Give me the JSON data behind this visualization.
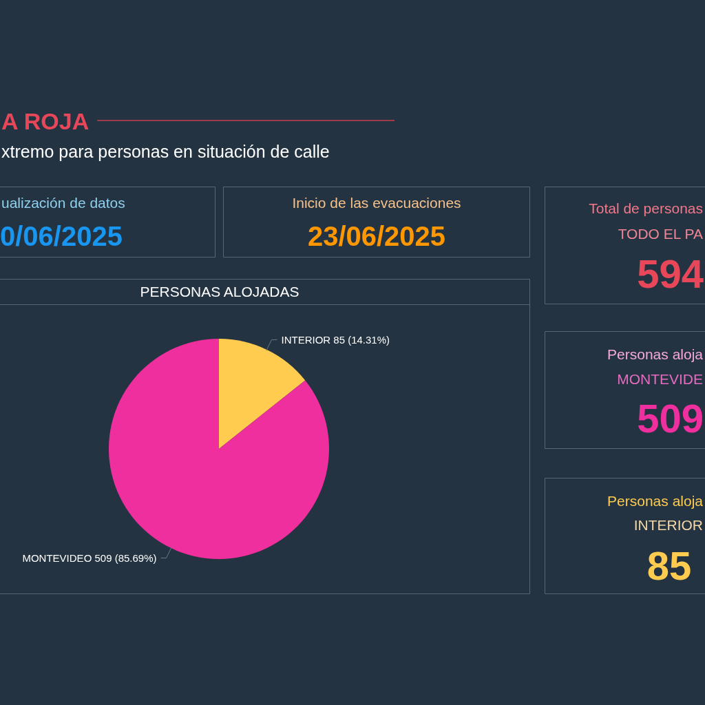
{
  "chart_data": [
    {
      "type": "other",
      "title": "A ROJA",
      "subtitle": "xtremo para personas en situación de calle"
    },
    {
      "type": "other",
      "title": "ualización de datos",
      "annotations": [
        "0/06/2025"
      ]
    },
    {
      "type": "other",
      "title": "Inicio de las evacuaciones",
      "annotations": [
        "23/06/2025"
      ]
    },
    {
      "type": "other",
      "title": "Total de personas",
      "subtitle": "TODO EL PA",
      "annotations": [
        "594"
      ]
    },
    {
      "type": "pie",
      "title": "PERSONAS ALOJADAS",
      "categories": [
        "INTERIOR",
        "MONTEVIDEO"
      ],
      "values": [
        85,
        509
      ],
      "colors": [
        "#ffcc4f",
        "#ee2f9d"
      ],
      "value_labels": [
        "85 (14.31%)",
        "509 (85.69%)"
      ]
    },
    {
      "type": "other",
      "title": "Personas aloja",
      "subtitle": "MONTEVIDE",
      "annotations": [
        "509"
      ]
    },
    {
      "type": "other",
      "title": "Personas aloja",
      "subtitle": "INTERIOR",
      "annotations": [
        "85"
      ]
    }
  ]
}
